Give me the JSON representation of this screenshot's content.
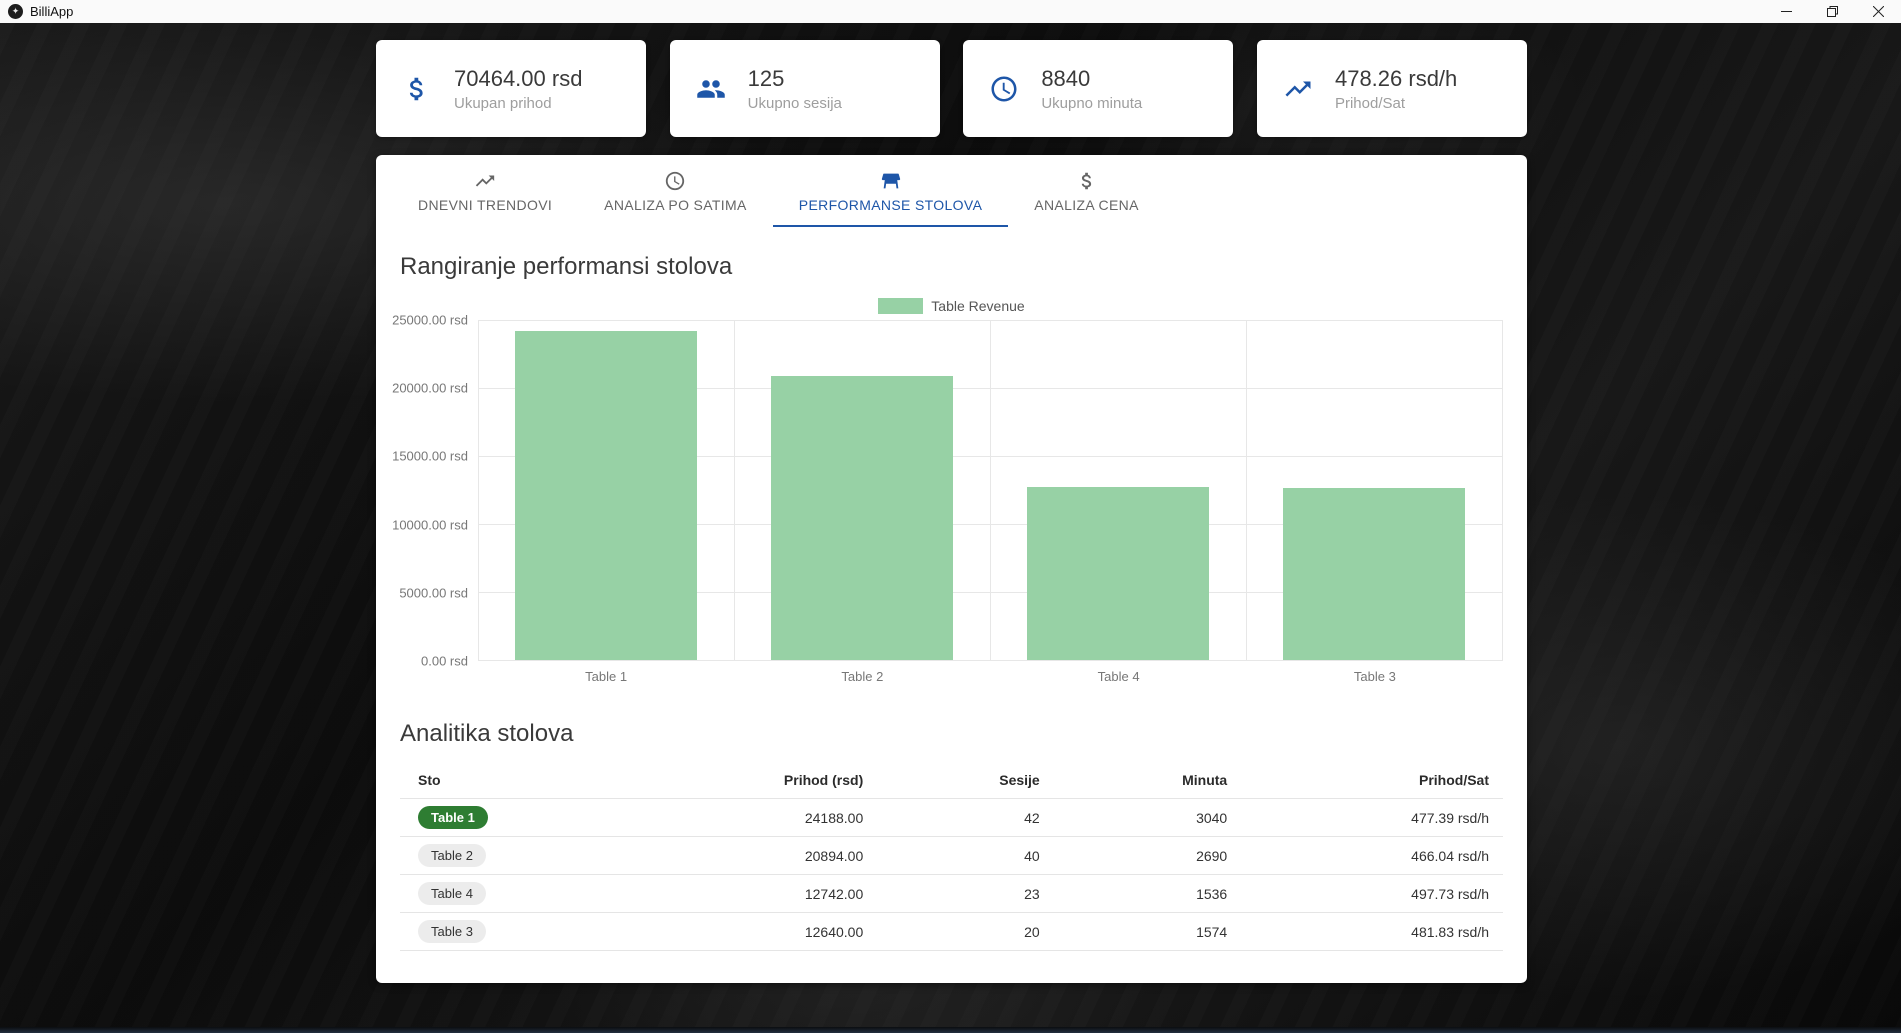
{
  "window": {
    "title": "BilliApp"
  },
  "colors": {
    "accent_blue": "#1e56a8",
    "bar_green": "#97d1a5",
    "chip_green": "#2e7d32",
    "taskbar_blue": "#232e3e"
  },
  "stats": [
    {
      "icon": "dollar-icon",
      "value": "70464.00 rsd",
      "label": "Ukupan prihod"
    },
    {
      "icon": "people-icon",
      "value": "125",
      "label": "Ukupno sesija"
    },
    {
      "icon": "clock-icon",
      "value": "8840",
      "label": "Ukupno minuta"
    },
    {
      "icon": "trending-up-icon",
      "value": "478.26 rsd/h",
      "label": "Prihod/Sat"
    }
  ],
  "tabs": [
    {
      "label": "DNEVNI TRENDOVI",
      "icon": "trending-up-icon",
      "active": false
    },
    {
      "label": "ANALIZA PO SATIMA",
      "icon": "clock-icon",
      "active": false
    },
    {
      "label": "PERFORMANSE STOLOVA",
      "icon": "table-icon",
      "active": true
    },
    {
      "label": "ANALIZA CENA",
      "icon": "dollar-icon",
      "active": false
    }
  ],
  "chart_data": {
    "type": "bar",
    "title": "Rangiranje performansi stolova",
    "legend": "Table Revenue",
    "legend_position": "top",
    "categories": [
      "Table 1",
      "Table 2",
      "Table 4",
      "Table 3"
    ],
    "values": [
      24188,
      20894,
      12742,
      12640
    ],
    "ylim": [
      0,
      25000
    ],
    "yticks": [
      "25000.00 rsd",
      "20000.00 rsd",
      "15000.00 rsd",
      "10000.00 rsd",
      "5000.00 rsd",
      "0.00 rsd"
    ],
    "grid": true,
    "bar_color": "#97d1a5"
  },
  "table_section": {
    "title": "Analitika stolova",
    "headers": [
      "Sto",
      "Prihod (rsd)",
      "Sesije",
      "Minuta",
      "Prihod/Sat"
    ],
    "rows": [
      {
        "sto": "Table 1",
        "chip": "green",
        "prihod": "24188.00",
        "sesije": "42",
        "minuta": "3040",
        "prihod_sat": "477.39 rsd/h"
      },
      {
        "sto": "Table 2",
        "chip": "gray",
        "prihod": "20894.00",
        "sesije": "40",
        "minuta": "2690",
        "prihod_sat": "466.04 rsd/h"
      },
      {
        "sto": "Table 4",
        "chip": "gray",
        "prihod": "12742.00",
        "sesije": "23",
        "minuta": "1536",
        "prihod_sat": "497.73 rsd/h"
      },
      {
        "sto": "Table 3",
        "chip": "gray",
        "prihod": "12640.00",
        "sesije": "20",
        "minuta": "1574",
        "prihod_sat": "481.83 rsd/h"
      }
    ]
  }
}
